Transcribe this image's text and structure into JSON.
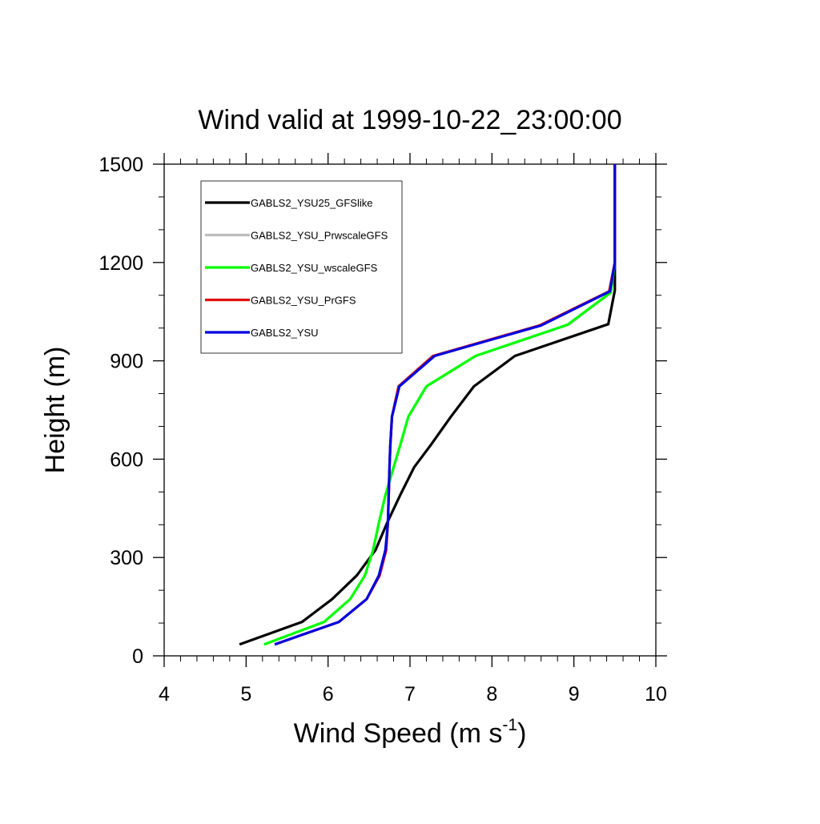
{
  "chart_data": {
    "type": "line",
    "title": "Wind valid at 1999-10-22_23:00:00",
    "xlabel": "Wind Speed (m s",
    "xlabel_sup": "-1",
    "xlabel_end": ")",
    "ylabel": "Height (m)",
    "xlim": [
      4,
      10
    ],
    "ylim": [
      0,
      1500
    ],
    "x_ticks": [
      4,
      5,
      6,
      7,
      8,
      9,
      10
    ],
    "y_ticks": [
      0,
      300,
      600,
      900,
      1200,
      1500
    ],
    "legend_position": "top-left",
    "grid": false,
    "series": [
      {
        "name": "GABLS2_YSU25_GFSlike",
        "color": "#000000",
        "points": [
          [
            4.92,
            35
          ],
          [
            5.68,
            103
          ],
          [
            6.05,
            173
          ],
          [
            6.35,
            245
          ],
          [
            6.58,
            323
          ],
          [
            6.72,
            405
          ],
          [
            6.88,
            490
          ],
          [
            7.05,
            575
          ],
          [
            7.25,
            642
          ],
          [
            7.5,
            730
          ],
          [
            7.78,
            822
          ],
          [
            8.28,
            915
          ],
          [
            9.42,
            1012
          ],
          [
            9.5,
            1115
          ],
          [
            9.5,
            1200
          ],
          [
            9.5,
            1500
          ]
        ]
      },
      {
        "name": "GABLS2_YSU_PrwscaleGFS",
        "color": "#bcbcbc",
        "points": [
          [
            5.22,
            35
          ],
          [
            5.95,
            103
          ],
          [
            6.27,
            173
          ],
          [
            6.45,
            245
          ],
          [
            6.55,
            323
          ],
          [
            6.62,
            405
          ],
          [
            6.7,
            490
          ],
          [
            6.8,
            575
          ],
          [
            6.88,
            642
          ],
          [
            6.98,
            730
          ],
          [
            7.2,
            822
          ],
          [
            7.8,
            915
          ],
          [
            8.95,
            1012
          ],
          [
            9.45,
            1110
          ],
          [
            9.5,
            1200
          ],
          [
            9.5,
            1500
          ]
        ]
      },
      {
        "name": "GABLS2_YSU_wscaleGFS",
        "color": "#00ff00",
        "points": [
          [
            5.22,
            35
          ],
          [
            5.95,
            103
          ],
          [
            6.27,
            173
          ],
          [
            6.45,
            245
          ],
          [
            6.55,
            323
          ],
          [
            6.62,
            405
          ],
          [
            6.7,
            490
          ],
          [
            6.8,
            575
          ],
          [
            6.88,
            642
          ],
          [
            6.98,
            730
          ],
          [
            7.2,
            822
          ],
          [
            7.8,
            915
          ],
          [
            8.92,
            1010
          ],
          [
            9.45,
            1108
          ],
          [
            9.5,
            1200
          ],
          [
            9.5,
            1500
          ]
        ]
      },
      {
        "name": "GABLS2_YSU_PrGFS",
        "color": "#e01010",
        "points": [
          [
            5.35,
            35
          ],
          [
            6.13,
            103
          ],
          [
            6.47,
            173
          ],
          [
            6.63,
            245
          ],
          [
            6.71,
            323
          ],
          [
            6.73,
            405
          ],
          [
            6.74,
            490
          ],
          [
            6.75,
            575
          ],
          [
            6.76,
            642
          ],
          [
            6.78,
            730
          ],
          [
            6.86,
            822
          ],
          [
            7.28,
            915
          ],
          [
            8.58,
            1008
          ],
          [
            9.43,
            1112
          ],
          [
            9.5,
            1200
          ],
          [
            9.5,
            1500
          ]
        ]
      },
      {
        "name": "GABLS2_YSU",
        "color": "#0000dd",
        "points": [
          [
            5.35,
            35
          ],
          [
            6.13,
            103
          ],
          [
            6.47,
            173
          ],
          [
            6.62,
            245
          ],
          [
            6.7,
            323
          ],
          [
            6.73,
            405
          ],
          [
            6.74,
            490
          ],
          [
            6.75,
            575
          ],
          [
            6.76,
            642
          ],
          [
            6.78,
            730
          ],
          [
            6.87,
            822
          ],
          [
            7.3,
            915
          ],
          [
            8.6,
            1008
          ],
          [
            9.44,
            1112
          ],
          [
            9.5,
            1200
          ],
          [
            9.5,
            1500
          ]
        ]
      }
    ]
  }
}
